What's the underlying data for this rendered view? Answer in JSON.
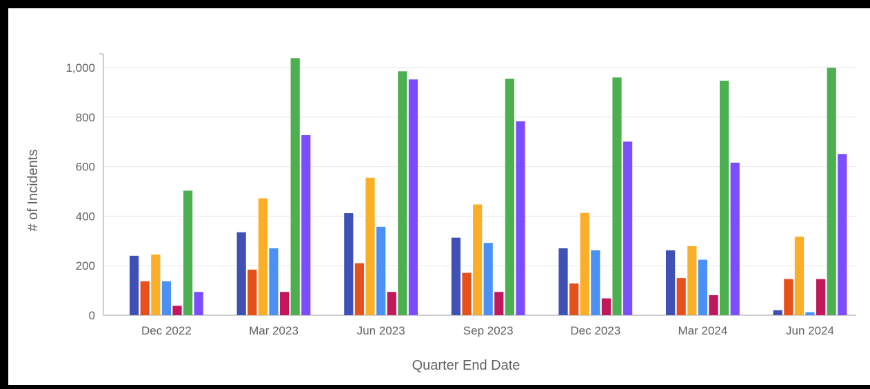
{
  "chart_data": {
    "type": "bar",
    "xlabel": "Quarter End Date",
    "ylabel": "# of Incidents",
    "ylim": [
      0,
      1050
    ],
    "yticks": [
      0,
      200,
      400,
      600,
      800,
      1000
    ],
    "ytick_labels": [
      "0",
      "200",
      "400",
      "600",
      "800",
      "1,000"
    ],
    "grid": true,
    "legend": "none",
    "categories": [
      "Dec 2022",
      "Mar 2023",
      "Jun 2023",
      "Sep 2023",
      "Dec 2023",
      "Mar 2024",
      "Jun 2024"
    ],
    "series": [
      {
        "color": "#3F51B5",
        "values": [
          240,
          335,
          412,
          313,
          270,
          262,
          20
        ]
      },
      {
        "color": "#E6501A",
        "values": [
          137,
          184,
          210,
          171,
          128,
          150,
          146
        ]
      },
      {
        "color": "#FBAE27",
        "values": [
          245,
          472,
          555,
          447,
          413,
          279,
          317
        ]
      },
      {
        "color": "#4A90F5",
        "values": [
          137,
          270,
          357,
          292,
          262,
          224,
          12
        ]
      },
      {
        "color": "#C2185B",
        "values": [
          38,
          94,
          94,
          94,
          68,
          81,
          146
        ]
      },
      {
        "color": "#4CAF50",
        "values": [
          503,
          1038,
          985,
          955,
          960,
          947,
          999
        ]
      },
      {
        "color": "#7C4DFF",
        "values": [
          94,
          727,
          952,
          783,
          701,
          616,
          651
        ]
      }
    ]
  }
}
